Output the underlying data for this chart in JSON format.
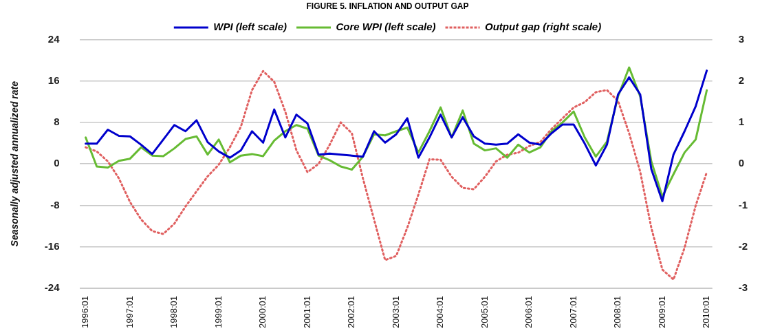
{
  "chart_data": {
    "type": "line",
    "title": "FIGURE 5. INFLATION AND OUTPUT GAP",
    "ylabel": "Seasonally adjusted annualized rate",
    "categories": [
      "1996:01",
      null,
      null,
      null,
      "1997:01",
      null,
      null,
      null,
      "1998:01",
      null,
      null,
      null,
      "1999:01",
      null,
      null,
      null,
      "2000:01",
      null,
      null,
      null,
      "2001:01",
      null,
      null,
      null,
      "2002:01",
      null,
      null,
      null,
      "2003:01",
      null,
      null,
      null,
      "2004:01",
      null,
      null,
      null,
      "2005:01",
      null,
      null,
      null,
      "2006:01",
      null,
      null,
      null,
      "2007:01",
      null,
      null,
      null,
      "2008:01",
      null,
      null,
      null,
      "2009:01",
      null,
      null,
      null,
      "2010:01"
    ],
    "series": [
      {
        "name": "WPI (left scale)",
        "color": "#0000cc",
        "line_style": "solid",
        "values": [
          3.9,
          3.9,
          6.6,
          5.4,
          5.3,
          3.7,
          1.9,
          4.7,
          7.5,
          6.3,
          8.4,
          4.2,
          2.4,
          1.2,
          2.6,
          6.3,
          4.1,
          10.5,
          5.1,
          9.5,
          7.8,
          1.8,
          2.0,
          1.8,
          1.6,
          1.4,
          6.3,
          4.1,
          5.7,
          8.8,
          1.2,
          5.1,
          9.5,
          5.1,
          9.0,
          5.3,
          3.9,
          3.7,
          3.9,
          5.7,
          4.1,
          3.7,
          5.9,
          7.6,
          7.6,
          3.9,
          -0.3,
          3.7,
          13.4,
          16.7,
          13.4,
          -1.0,
          -7.2,
          1.8,
          6.3,
          11.1,
          18.0
        ]
      },
      {
        "name": "Core WPI (left scale)",
        "color": "#66bb33",
        "line_style": "solid",
        "values": [
          5.1,
          -0.5,
          -0.7,
          0.6,
          1.0,
          3.2,
          1.6,
          1.5,
          3.0,
          4.8,
          5.3,
          1.8,
          4.7,
          0.3,
          1.6,
          1.9,
          1.5,
          4.5,
          6.3,
          7.5,
          6.8,
          1.6,
          0.7,
          -0.5,
          -1.1,
          1.4,
          5.7,
          5.5,
          6.3,
          7.0,
          2.2,
          6.3,
          10.9,
          5.1,
          10.3,
          3.9,
          2.6,
          3.0,
          1.2,
          3.7,
          2.2,
          3.2,
          6.3,
          8.0,
          10.1,
          5.1,
          1.4,
          4.3,
          13.0,
          18.6,
          13.0,
          0.5,
          -6.3,
          -2.0,
          2.2,
          4.7,
          14.2
        ]
      },
      {
        "name": "Output gap (right scale)",
        "color": "#e06060",
        "line_style": "dotted",
        "axis": "y2",
        "values": [
          0.4,
          0.3,
          0.06,
          -0.35,
          -0.92,
          -1.34,
          -1.62,
          -1.69,
          -1.44,
          -1.03,
          -0.66,
          -0.3,
          -0.02,
          0.4,
          0.9,
          1.78,
          2.24,
          1.98,
          1.26,
          0.33,
          -0.2,
          0.0,
          0.46,
          1.0,
          0.74,
          -0.35,
          -1.34,
          -2.32,
          -2.22,
          -1.54,
          -0.74,
          0.11,
          0.1,
          -0.31,
          -0.58,
          -0.61,
          -0.31,
          0.06,
          0.22,
          0.27,
          0.43,
          0.53,
          0.84,
          1.1,
          1.36,
          1.49,
          1.73,
          1.78,
          1.52,
          0.74,
          -0.19,
          -1.54,
          -2.55,
          -2.79,
          -2.02,
          -1.01,
          -0.2
        ]
      }
    ],
    "ylim": [
      -24,
      24
    ],
    "yticks": [
      -24,
      -16,
      -8,
      0,
      8,
      16,
      24
    ],
    "y2lim": [
      -3,
      3
    ],
    "y2ticks": [
      -3,
      -2,
      -1,
      0,
      1,
      2,
      3
    ],
    "grid": "y",
    "legend": "top",
    "marker": "none"
  }
}
